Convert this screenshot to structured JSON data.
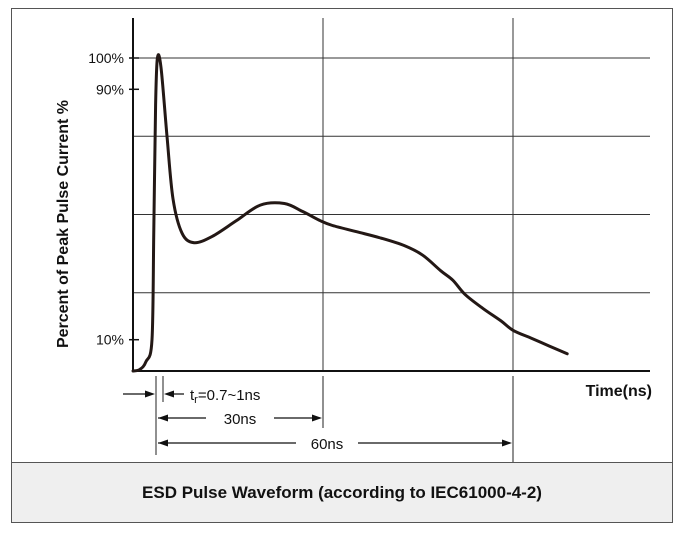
{
  "chart_data": {
    "type": "line",
    "title": "",
    "xlabel": "Time(ns)",
    "ylabel": "Percent of Peak Pulse Current %",
    "xlim": [
      -4,
      70
    ],
    "ylim": [
      0,
      110
    ],
    "grid": true,
    "legend": "none",
    "y_ticks": [
      {
        "value": 10,
        "label": "10%"
      },
      {
        "value": 90,
        "label": "90%"
      },
      {
        "value": 100,
        "label": "100%"
      }
    ],
    "x_gridlines": [
      30,
      60
    ],
    "y_gridlines": [
      25,
      50,
      75,
      100
    ],
    "series": [
      {
        "color": "#231815",
        "x": [
          -4,
          -2,
          -1,
          0,
          0.3,
          0.6,
          0.9,
          1.5,
          2.5,
          3.5,
          5,
          7,
          10,
          14,
          18,
          22,
          25,
          28,
          30,
          34,
          38,
          42,
          45,
          48,
          50,
          52,
          55,
          58,
          60,
          63,
          66,
          69
        ],
        "y": [
          0,
          0.5,
          3,
          10,
          45,
          85,
          100,
          97,
          75,
          55,
          44,
          41,
          43,
          48,
          53,
          53.5,
          51,
          48,
          46.5,
          44.5,
          42.5,
          40,
          37,
          32,
          29,
          24.5,
          20,
          16,
          13,
          10.5,
          8,
          5.5
        ]
      }
    ],
    "annotations": [
      {
        "type": "dimension",
        "from": -4,
        "to": 0.9,
        "label_sub_t": "t",
        "label_sub_r": "r",
        "label": "=0.7~1ns"
      },
      {
        "type": "dimension",
        "from": 0,
        "to": 30,
        "label": "30ns"
      },
      {
        "type": "dimension",
        "from": 0,
        "to": 60,
        "label": "60ns"
      }
    ]
  },
  "caption": "ESD Pulse Waveform (according to IEC61000-4-2)"
}
